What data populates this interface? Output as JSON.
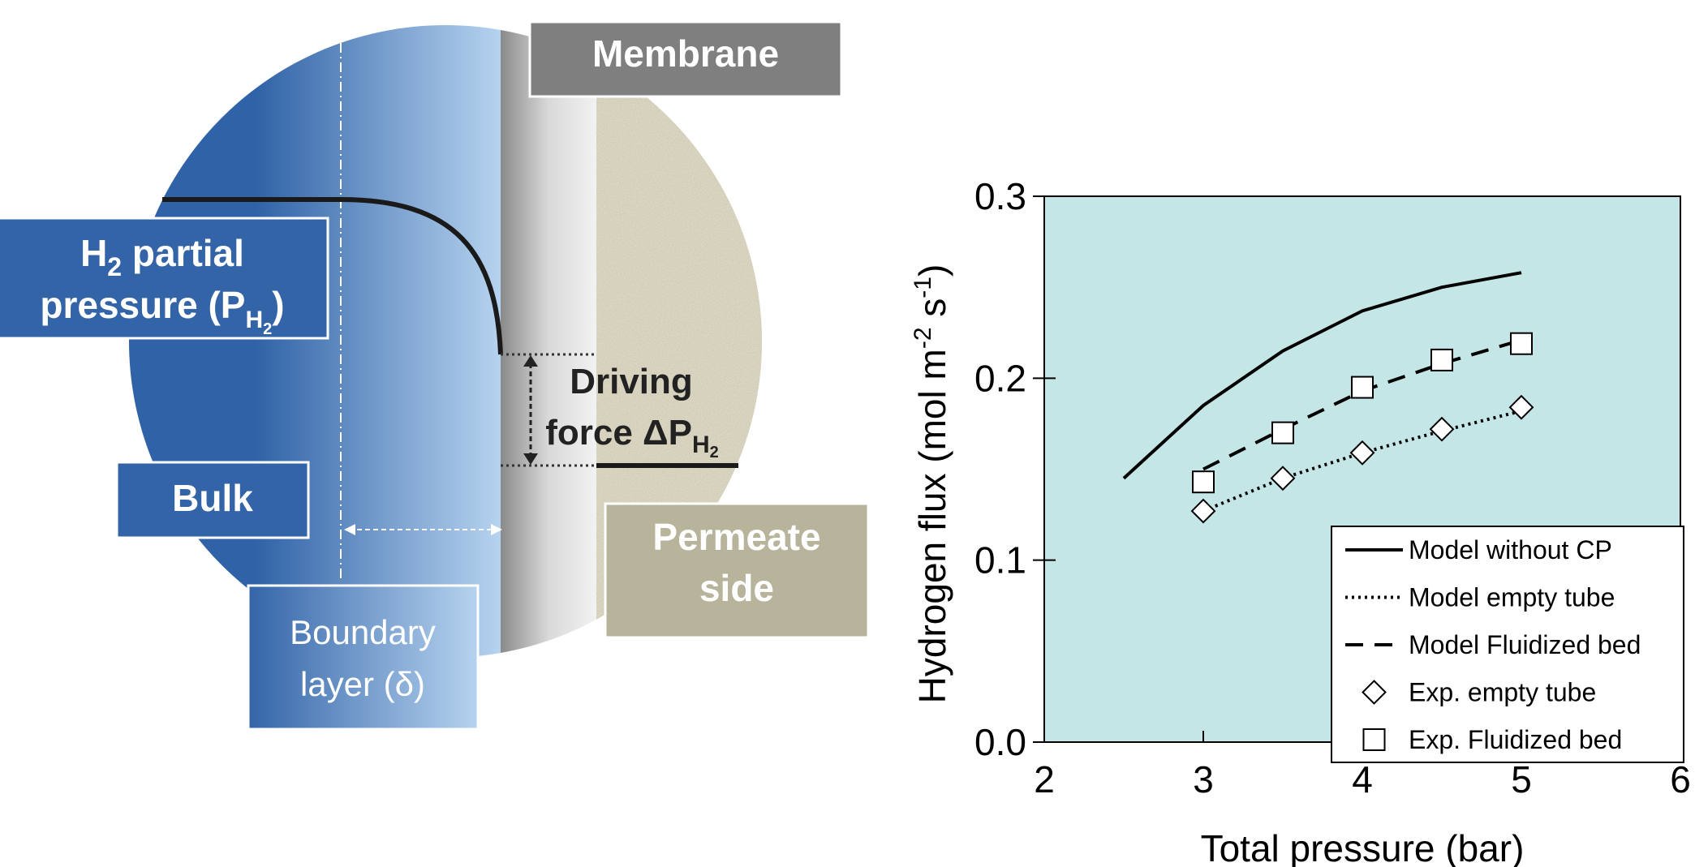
{
  "diagram": {
    "membrane": "Membrane",
    "h2_label": [
      "H",
      "2",
      " partial",
      "pressure (P",
      "H",
      "2",
      ")"
    ],
    "driving_force": [
      "Driving",
      "force ΔP",
      "H",
      "2"
    ],
    "bulk": "Bulk",
    "boundary_layer": [
      "Boundary",
      "layer (δ)"
    ],
    "permeate": [
      "Permeate",
      "side"
    ]
  },
  "chart_data": {
    "type": "line",
    "x_label": "Total pressure (bar)",
    "y_label": [
      "Hydrogen flux (mol m",
      "-2",
      " s",
      "-1",
      ")"
    ],
    "xlim": [
      2,
      6
    ],
    "xticks": [
      2,
      3,
      4,
      5,
      6
    ],
    "ylim": [
      0,
      0.3
    ],
    "yticks": [
      {
        "value": 0,
        "label": "0.0"
      },
      0.1,
      0.2,
      0.3
    ],
    "background": "#c5e6e6",
    "legend": "lower right",
    "series": [
      {
        "name": "Model without CP",
        "style": "solid",
        "color": "#000000",
        "x": [
          2.5,
          3,
          3.5,
          4,
          4.5,
          5
        ],
        "values": [
          0.145,
          0.185,
          0.215,
          0.237,
          0.25,
          0.258
        ]
      },
      {
        "name": "Model empty tube",
        "style": "dotted",
        "color": "#000000",
        "x": [
          3,
          3.5,
          4,
          4.5,
          5
        ],
        "values": [
          0.127,
          0.145,
          0.159,
          0.171,
          0.182
        ]
      },
      {
        "name": "Model Fluidized bed",
        "style": "dashed",
        "color": "#000000",
        "x": [
          3,
          3.5,
          4,
          4.5,
          5
        ],
        "values": [
          0.15,
          0.172,
          0.193,
          0.208,
          0.221
        ]
      },
      {
        "name": "Exp. empty tube",
        "style": "diamond",
        "color": "#000000",
        "x": [
          3,
          3.5,
          4,
          4.5,
          5
        ],
        "values": [
          0.127,
          0.145,
          0.159,
          0.172,
          0.184
        ]
      },
      {
        "name": "Exp. Fluidized bed",
        "style": "square",
        "color": "#000000",
        "x": [
          3,
          3.5,
          4,
          4.5,
          5
        ],
        "values": [
          0.143,
          0.17,
          0.195,
          0.21,
          0.219
        ]
      }
    ]
  }
}
